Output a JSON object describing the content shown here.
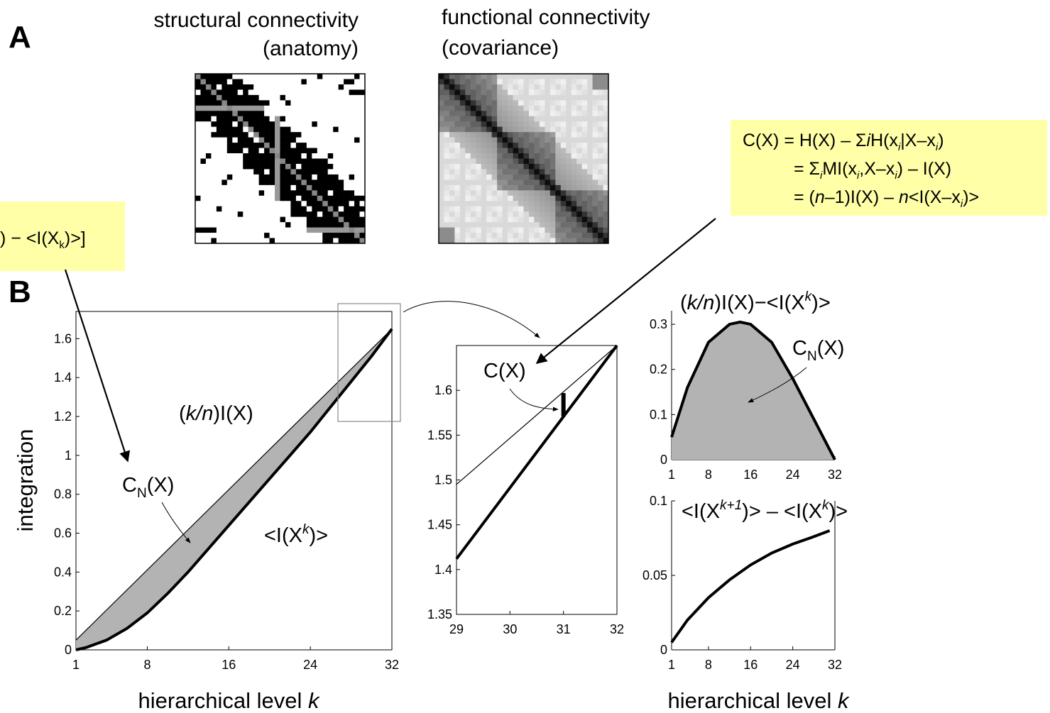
{
  "panels": {
    "a": "A",
    "b": "B"
  },
  "matrices": {
    "structural": {
      "title_line1": "structural connectivity",
      "title_line2": "(anatomy)",
      "n": 32
    },
    "functional": {
      "title_line1": "functional connectivity",
      "title_line2": "(covariance)",
      "n": 32
    }
  },
  "equations": {
    "left_box": {
      "main": ") − <I(X",
      "sub": "k",
      "tail": ")>]"
    },
    "right_box": {
      "line1": {
        "a": "C(X) = H(X) – Σ",
        "b": "i",
        "c": "H(x",
        "d": "i",
        "e": "|X–x",
        "f": "i",
        "g": ")"
      },
      "line2": {
        "a": "= Σ",
        "b": "i",
        "c": "MI(x",
        "d": "i",
        "e": ",X–x",
        "f": "i",
        "g": ") – I(X)"
      },
      "line3": {
        "a": "= (",
        "b": "n",
        "c": "–1)I(X) – ",
        "d": "n",
        "e": "<I(X–x",
        "f": "i",
        "g": ")>"
      }
    }
  },
  "labels": {
    "ylabel": "integration",
    "xlabel_main": "hierarchical level ",
    "xlabel_k": "k",
    "kn_a": "(",
    "kn_b": "k/n",
    "kn_c": ")I(X)",
    "cn_a": "C",
    "cn_b": "N",
    "cn_c": "(X)",
    "ixk_a": "<I(X",
    "ixk_b": "k",
    "ixk_c": ")>",
    "cx": "C(X)",
    "r1_title_a": "(",
    "r1_title_b": "k/n",
    "r1_title_c": ")I(X)−<I(X",
    "r1_title_d": "k",
    "r1_title_e": ")>",
    "r2_title_a": "<I(X",
    "r2_title_b": "k+1",
    "r2_title_c": ")> – <I(X",
    "r2_title_d": "k",
    "r2_title_e": ")>"
  },
  "chart_data": [
    {
      "type": "area",
      "id": "main",
      "x_ticks": [
        1,
        8,
        16,
        24,
        32
      ],
      "y_ticks": [
        0,
        0.2,
        0.4,
        0.6,
        0.8,
        1,
        1.2,
        1.4,
        1.6
      ],
      "xlim": [
        1,
        32
      ],
      "ylim": [
        0,
        1.74
      ],
      "series": [
        {
          "name": "(k/n)I(X)",
          "x": [
            1,
            32
          ],
          "y": [
            0.05,
            1.65
          ]
        },
        {
          "name": "<I(X^k)>",
          "x": [
            1,
            2,
            4,
            6,
            8,
            10,
            12,
            14,
            16,
            18,
            20,
            22,
            24,
            26,
            28,
            30,
            32
          ],
          "y": [
            0,
            0.012,
            0.05,
            0.11,
            0.19,
            0.29,
            0.4,
            0.52,
            0.64,
            0.76,
            0.88,
            1.0,
            1.12,
            1.25,
            1.38,
            1.51,
            1.65
          ]
        }
      ]
    },
    {
      "type": "line",
      "id": "zoom",
      "x_ticks": [
        29,
        30,
        31,
        32
      ],
      "y_ticks": [
        1.35,
        1.4,
        1.45,
        1.5,
        1.55,
        1.6
      ],
      "xlim": [
        29,
        32
      ],
      "ylim": [
        1.35,
        1.65
      ],
      "series": [
        {
          "name": "(k/n)I(X)",
          "x": [
            29,
            32
          ],
          "y": [
            1.495,
            1.65
          ]
        },
        {
          "name": "<I(X^k)>",
          "x": [
            29,
            32
          ],
          "y": [
            1.412,
            1.65
          ]
        }
      ],
      "bar": {
        "x": 31,
        "y": [
          1.571,
          1.597
        ]
      }
    },
    {
      "type": "area",
      "id": "cn",
      "x_ticks": [
        1,
        8,
        16,
        24,
        32
      ],
      "y_ticks": [
        0,
        0.1,
        0.2,
        0.3
      ],
      "xlim": [
        1,
        32
      ],
      "ylim": [
        0,
        0.33
      ],
      "series": [
        {
          "name": "C_N(X)",
          "x": [
            1,
            4,
            8,
            12,
            14,
            16,
            20,
            24,
            28,
            32
          ],
          "y": [
            0.05,
            0.16,
            0.26,
            0.3,
            0.305,
            0.3,
            0.26,
            0.18,
            0.09,
            0
          ]
        }
      ]
    },
    {
      "type": "line",
      "id": "diff",
      "x_ticks": [
        1,
        8,
        16,
        24,
        32
      ],
      "y_ticks": [
        0,
        0.05,
        0.1
      ],
      "xlim": [
        1,
        32
      ],
      "ylim": [
        0,
        0.1
      ],
      "series": [
        {
          "name": "<I(X^k+1)> – <I(X^k)>",
          "x": [
            1,
            4,
            8,
            12,
            16,
            20,
            24,
            28,
            31
          ],
          "y": [
            0.005,
            0.02,
            0.035,
            0.047,
            0.057,
            0.065,
            0.071,
            0.076,
            0.08
          ]
        }
      ]
    }
  ]
}
